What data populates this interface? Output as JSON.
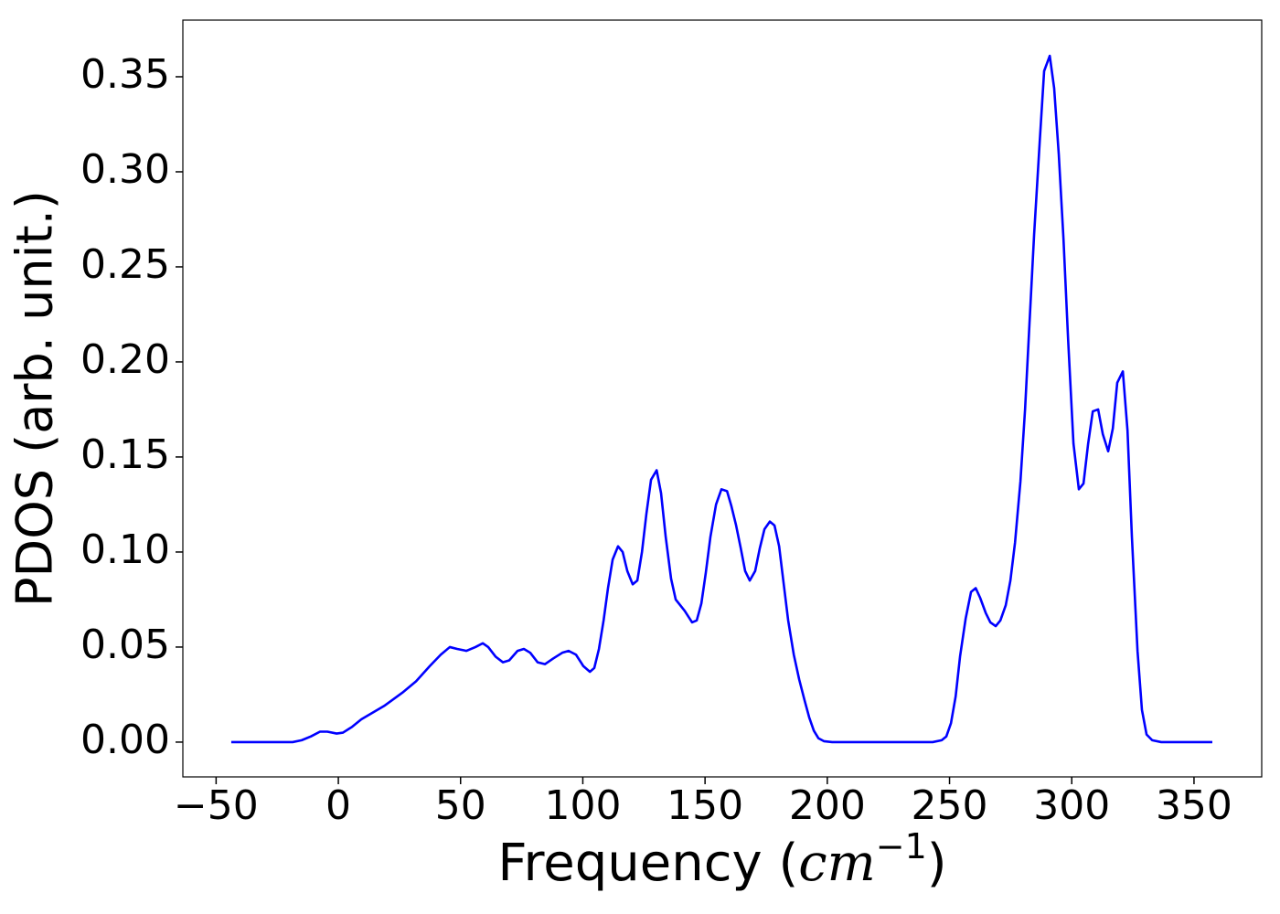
{
  "chart_data": {
    "type": "line",
    "xlabel": [
      "Frequency (",
      "cm",
      "−1",
      ")"
    ],
    "ylabel": "PDOS (arb. unit.)",
    "xlim": [
      -63.6,
      377.7
    ],
    "ylim": [
      -0.0183,
      0.3798
    ],
    "xticks": [
      {
        "value": -50,
        "label": "−50"
      },
      0,
      50,
      100,
      150,
      200,
      250,
      300,
      350
    ],
    "yticks": [
      {
        "value": 0,
        "label": "0.00"
      },
      {
        "value": 0.05,
        "label": "0.05"
      },
      {
        "value": 0.1,
        "label": "0.10"
      },
      {
        "value": 0.15,
        "label": "0.15"
      },
      {
        "value": 0.2,
        "label": "0.20"
      },
      {
        "value": 0.25,
        "label": "0.25"
      },
      {
        "value": 0.3,
        "label": "0.30"
      },
      {
        "value": 0.35,
        "label": "0.35"
      }
    ],
    "x": [
      -43.8,
      -18.7,
      -15,
      -11.2,
      -7.5,
      -4.5,
      -0.7,
      1.9,
      5.6,
      9.4,
      18.7,
      26.2,
      31.8,
      37.4,
      41.9,
      45.6,
      48.6,
      52.4,
      56.1,
      59.1,
      61.3,
      64.3,
      67.3,
      69.9,
      73.3,
      75.9,
      78.5,
      81.5,
      84.5,
      87.9,
      91.6,
      94.2,
      97.2,
      100.2,
      102.9,
      104.7,
      106.6,
      108.5,
      110.3,
      112.2,
      114.4,
      116.3,
      118.2,
      120.4,
      122.3,
      124.2,
      126.0,
      127.9,
      130.2,
      132.0,
      133.9,
      136.1,
      138.0,
      141.7,
      144.7,
      146.6,
      148.5,
      150.3,
      152.2,
      154.5,
      156.7,
      159.0,
      160.8,
      162.7,
      164.6,
      166.4,
      168.3,
      170.5,
      172.4,
      174.3,
      176.5,
      178.4,
      180.3,
      182.1,
      184.0,
      186.3,
      188.5,
      190.7,
      192.6,
      194.5,
      196.4,
      198.6,
      202.0,
      243.1,
      246.8,
      248.7,
      250.6,
      252.5,
      254.3,
      256.6,
      258.8,
      260.7,
      262.5,
      264.8,
      266.7,
      268.9,
      270.8,
      273.0,
      274.9,
      276.8,
      279.0,
      280.9,
      282.7,
      284.6,
      286.9,
      288.7,
      291.0,
      292.8,
      294.7,
      296.6,
      298.5,
      300.7,
      302.9,
      304.8,
      306.7,
      308.6,
      310.8,
      312.7,
      314.9,
      316.8,
      318.6,
      320.9,
      322.8,
      324.6,
      326.9,
      328.7,
      330.6,
      332.9,
      336.6,
      357.5
    ],
    "series": [
      {
        "color": "#0000ff",
        "values": [
          0,
          0,
          0.001,
          0.003,
          0.0055,
          0.0055,
          0.0045,
          0.005,
          0.008,
          0.012,
          0.019,
          0.026,
          0.032,
          0.04,
          0.046,
          0.05,
          0.049,
          0.048,
          0.05,
          0.052,
          0.05,
          0.045,
          0.042,
          0.043,
          0.048,
          0.049,
          0.047,
          0.042,
          0.041,
          0.044,
          0.047,
          0.048,
          0.046,
          0.04,
          0.037,
          0.039,
          0.049,
          0.064,
          0.081,
          0.096,
          0.103,
          0.1,
          0.09,
          0.083,
          0.085,
          0.1,
          0.12,
          0.138,
          0.143,
          0.131,
          0.108,
          0.086,
          0.075,
          0.069,
          0.063,
          0.064,
          0.073,
          0.089,
          0.108,
          0.125,
          0.133,
          0.132,
          0.124,
          0.114,
          0.102,
          0.09,
          0.085,
          0.09,
          0.102,
          0.112,
          0.116,
          0.114,
          0.103,
          0.084,
          0.064,
          0.046,
          0.033,
          0.022,
          0.013,
          0.006,
          0.002,
          0.0005,
          0,
          0,
          0.001,
          0.003,
          0.01,
          0.024,
          0.045,
          0.065,
          0.079,
          0.081,
          0.076,
          0.068,
          0.063,
          0.061,
          0.064,
          0.072,
          0.085,
          0.105,
          0.137,
          0.175,
          0.22,
          0.267,
          0.316,
          0.353,
          0.361,
          0.344,
          0.309,
          0.265,
          0.212,
          0.157,
          0.133,
          0.136,
          0.157,
          0.174,
          0.175,
          0.162,
          0.153,
          0.165,
          0.189,
          0.195,
          0.164,
          0.108,
          0.048,
          0.017,
          0.004,
          0.001,
          0,
          0
        ]
      }
    ]
  }
}
